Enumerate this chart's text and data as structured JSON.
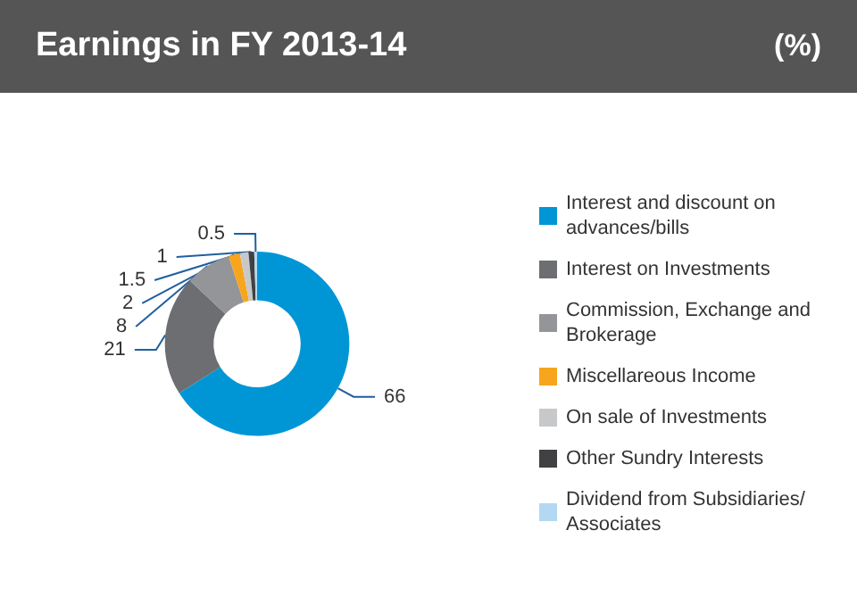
{
  "chart_data": {
    "type": "donut",
    "title": "Earnings in FY 2013-14",
    "subtitle": "(%)",
    "categories": [
      "Interest and discount on advances/bills",
      "Interest on Investments",
      "Commission, Exchange and Brokerage",
      "Miscellareous Income",
      "On sale of Investments",
      "Other Sundry Interests",
      "Dividend from Subsidiaries/ Associates"
    ],
    "values": [
      66,
      21,
      8,
      2,
      1.5,
      1,
      0.5
    ],
    "colors": [
      "#0096d6",
      "#6d6e71",
      "#939598",
      "#f7a51c",
      "#c7c8ca",
      "#414042",
      "#b3d9f2"
    ],
    "data_labels": true,
    "legend": "right"
  }
}
